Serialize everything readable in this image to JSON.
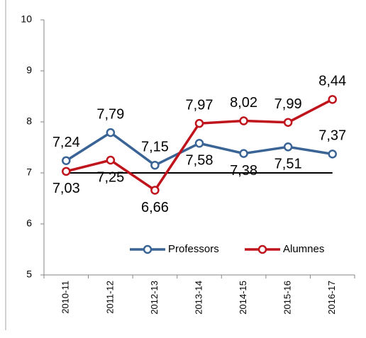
{
  "chart_data": {
    "type": "line",
    "categories": [
      "2010-11",
      "2011-12",
      "2012-13",
      "2013-14",
      "2014-15",
      "2015-16",
      "2016-17"
    ],
    "series": [
      {
        "name": "Professors",
        "color": "#3b6496",
        "values": [
          7.24,
          7.79,
          7.15,
          7.58,
          7.38,
          7.51,
          7.37
        ],
        "value_labels": [
          "7,24",
          "7,79",
          "7,15",
          "7,58",
          "7,38",
          "7,51",
          "7,37"
        ]
      },
      {
        "name": "Alumnes",
        "color": "#c0141c",
        "values": [
          7.03,
          7.25,
          6.66,
          7.97,
          8.02,
          7.99,
          8.44
        ],
        "value_labels": [
          "7,03",
          "7,25",
          "6,66",
          "7,97",
          "8,02",
          "7,99",
          "8,44"
        ]
      }
    ],
    "reference_line": {
      "value": 7,
      "color": "#000000"
    },
    "ylim": [
      5,
      10
    ],
    "yticks": [
      5,
      6,
      7,
      8,
      9,
      10
    ],
    "grid": false,
    "legend": "bottom-right"
  }
}
